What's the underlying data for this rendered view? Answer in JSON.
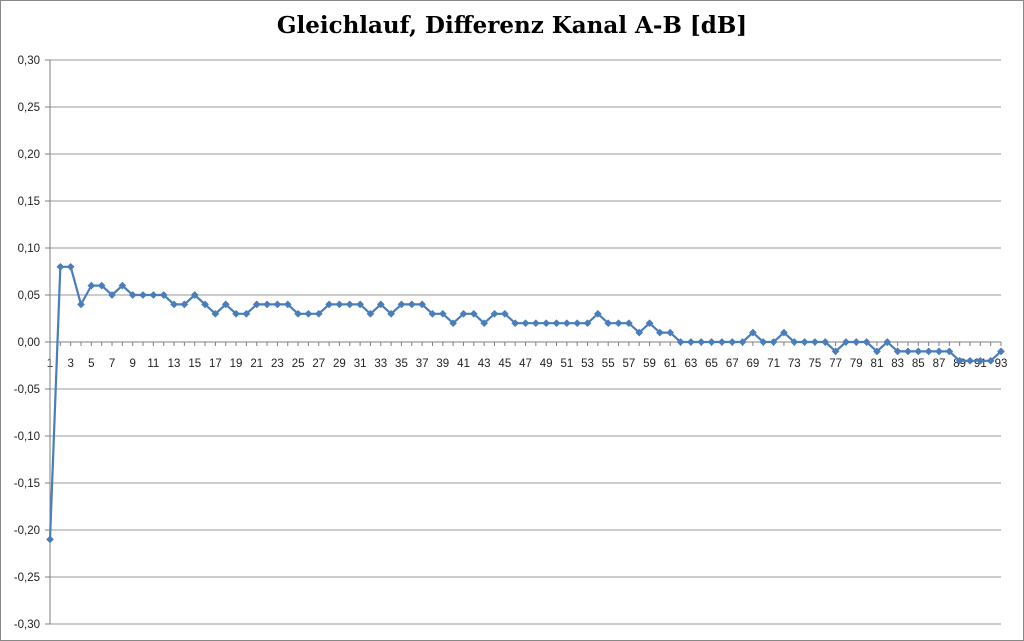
{
  "chart_data": {
    "type": "line",
    "title": "Gleichlauf, Differenz Kanal A-B [dB]",
    "xlabel": "",
    "ylabel": "",
    "ylim": [
      -0.3,
      0.3
    ],
    "y_ticks": [
      "0,30",
      "0,25",
      "0,20",
      "0,15",
      "0,10",
      "0,05",
      "0,00",
      "-0,05",
      "-0,10",
      "-0,15",
      "-0,20",
      "-0,25",
      "-0,30"
    ],
    "y_tick_values": [
      0.3,
      0.25,
      0.2,
      0.15,
      0.1,
      0.05,
      0.0,
      -0.05,
      -0.1,
      -0.15,
      -0.2,
      -0.25,
      -0.3
    ],
    "x_tick_labels": [
      "1",
      "3",
      "5",
      "7",
      "9",
      "11",
      "13",
      "15",
      "17",
      "19",
      "21",
      "23",
      "25",
      "27",
      "29",
      "31",
      "33",
      "35",
      "37",
      "39",
      "41",
      "43",
      "45",
      "47",
      "49",
      "51",
      "53",
      "55",
      "57",
      "59",
      "61",
      "63",
      "65",
      "67",
      "69",
      "71",
      "73",
      "75",
      "77",
      "79",
      "81",
      "83",
      "85",
      "87",
      "89",
      "91",
      "93"
    ],
    "grid": true,
    "legend": "none",
    "series_color": "#4a7ebb",
    "series": [
      {
        "x": [
          1,
          2,
          3,
          4,
          5,
          6,
          7,
          8,
          9,
          10,
          11,
          12,
          13,
          14,
          15,
          16,
          17,
          18,
          19,
          20,
          21,
          22,
          23,
          24,
          25,
          26,
          27,
          28,
          29,
          30,
          31,
          32,
          33,
          34,
          35,
          36,
          37,
          38,
          39,
          40,
          41,
          42,
          43,
          44,
          45,
          46,
          47,
          48,
          49,
          50,
          51,
          52,
          53,
          54,
          55,
          56,
          57,
          58,
          59,
          60,
          61,
          62,
          63,
          64,
          65,
          66,
          67,
          68,
          69,
          70,
          71,
          72,
          73,
          74,
          75,
          76,
          77,
          78,
          79,
          80,
          81,
          82,
          83,
          84,
          85,
          86,
          87,
          88,
          89,
          90,
          91,
          92,
          93
        ],
        "values": [
          -0.21,
          0.08,
          0.08,
          0.04,
          0.06,
          0.06,
          0.05,
          0.06,
          0.05,
          0.05,
          0.05,
          0.05,
          0.04,
          0.04,
          0.05,
          0.04,
          0.03,
          0.04,
          0.03,
          0.03,
          0.04,
          0.04,
          0.04,
          0.04,
          0.03,
          0.03,
          0.03,
          0.04,
          0.04,
          0.04,
          0.04,
          0.03,
          0.04,
          0.03,
          0.04,
          0.04,
          0.04,
          0.03,
          0.03,
          0.02,
          0.03,
          0.03,
          0.02,
          0.03,
          0.03,
          0.02,
          0.02,
          0.02,
          0.02,
          0.02,
          0.02,
          0.02,
          0.02,
          0.03,
          0.02,
          0.02,
          0.02,
          0.01,
          0.02,
          0.01,
          0.01,
          0.0,
          0.0,
          0.0,
          0.0,
          0.0,
          0.0,
          0.0,
          0.01,
          0.0,
          0.0,
          0.01,
          0.0,
          0.0,
          0.0,
          0.0,
          -0.01,
          0.0,
          0.0,
          0.0,
          -0.01,
          0.0,
          -0.01,
          -0.01,
          -0.01,
          -0.01,
          -0.01,
          -0.01,
          -0.02,
          -0.02,
          -0.02,
          -0.02,
          -0.01
        ]
      }
    ]
  }
}
